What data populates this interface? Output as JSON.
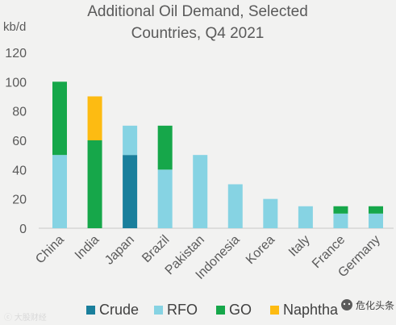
{
  "chart_data": {
    "type": "bar",
    "stacked": true,
    "title_lines": [
      "Additional Oil Demand, Selected",
      "Countries, Q4 2021"
    ],
    "ylabel": "kb/d",
    "ylim": [
      0,
      120
    ],
    "yticks": [
      0,
      20,
      40,
      60,
      80,
      100,
      120
    ],
    "grid": false,
    "legend_position": "bottom",
    "categories": [
      "China",
      "India",
      "Japan",
      "Brazil",
      "Pakistan",
      "Indonesia",
      "Korea",
      "Italy",
      "France",
      "Germany"
    ],
    "series": [
      {
        "name": "Crude",
        "color": "#1a7f9c",
        "values": [
          0,
          0,
          50,
          0,
          0,
          0,
          0,
          0,
          0,
          0
        ]
      },
      {
        "name": "RFO",
        "color": "#86d3e3",
        "values": [
          50,
          0,
          20,
          40,
          50,
          30,
          20,
          15,
          10,
          10
        ]
      },
      {
        "name": "GO",
        "color": "#16a74a",
        "values": [
          50,
          60,
          0,
          30,
          0,
          0,
          0,
          0,
          5,
          5
        ]
      },
      {
        "name": "Naphtha",
        "color": "#fdbb12",
        "values": [
          0,
          30,
          0,
          0,
          0,
          0,
          0,
          0,
          0,
          0
        ]
      }
    ]
  },
  "watermark": {
    "left_text": "ⓒ 大股财经",
    "right_text": "危化头条",
    "icon": "wechat-icon"
  }
}
